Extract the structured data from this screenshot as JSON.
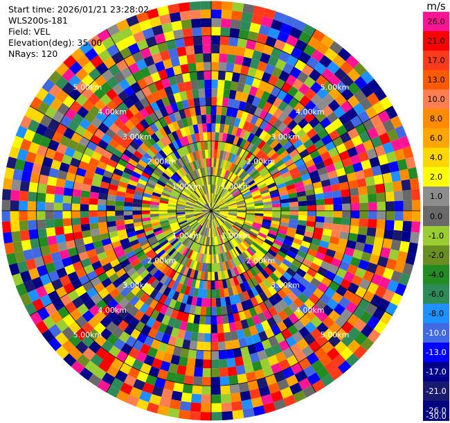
{
  "header": {
    "start_time_label": "Start time: 2026/01/21 23:28:02",
    "instrument": "WLS200s-181",
    "field_label": "Field: VEL",
    "elevation_label": "Elevation(deg): 35.00",
    "nrays_label": "NRays: 120"
  },
  "colorbar": {
    "unit": "m/s",
    "ticks": [
      "26.0",
      "21.0",
      "17.0",
      "13.0",
      "10.0",
      "8.0",
      "6.0",
      "4.0",
      "2.0",
      "1.0",
      "0.0",
      "-1.0",
      "-2.0",
      "-4.0",
      "-6.0",
      "-8.0",
      "-10.0",
      "-13.0",
      "-17.0",
      "-21.0",
      "-26.0",
      "-30.0"
    ],
    "colors": [
      "#ff1493",
      "#ff0000",
      "#ff3a1a",
      "#ff5a00",
      "#ff7f50",
      "#ff8c00",
      "#ffa500",
      "#ffd700",
      "#ffff00",
      "#8c8c8c",
      "#696969",
      "#9acd32",
      "#6b8e23",
      "#228b22",
      "#2e8b57",
      "#1e90ff",
      "#4169e1",
      "#0000ff",
      "#00008b",
      "#191970",
      "#000080"
    ]
  },
  "chart_data": {
    "type": "heatmap",
    "projection": "polar PPI",
    "field": "VEL",
    "n_rays": 120,
    "elevation_deg": 35.0,
    "range_rings_km": [
      {
        "km": 1.0,
        "label": "1.00km"
      },
      {
        "km": 2.0,
        "label": "2.00km"
      },
      {
        "km": 3.0,
        "label": "3.00km"
      },
      {
        "km": 4.0,
        "label": "4.00km"
      },
      {
        "km": 5.0,
        "label": "5.00km"
      }
    ],
    "max_range_km": 6.0,
    "value_range": [
      -30.0,
      30.0
    ],
    "pattern": "near-range slow returns (-2 to 2 m/s); far range mixed noisy velocities across full scale"
  }
}
